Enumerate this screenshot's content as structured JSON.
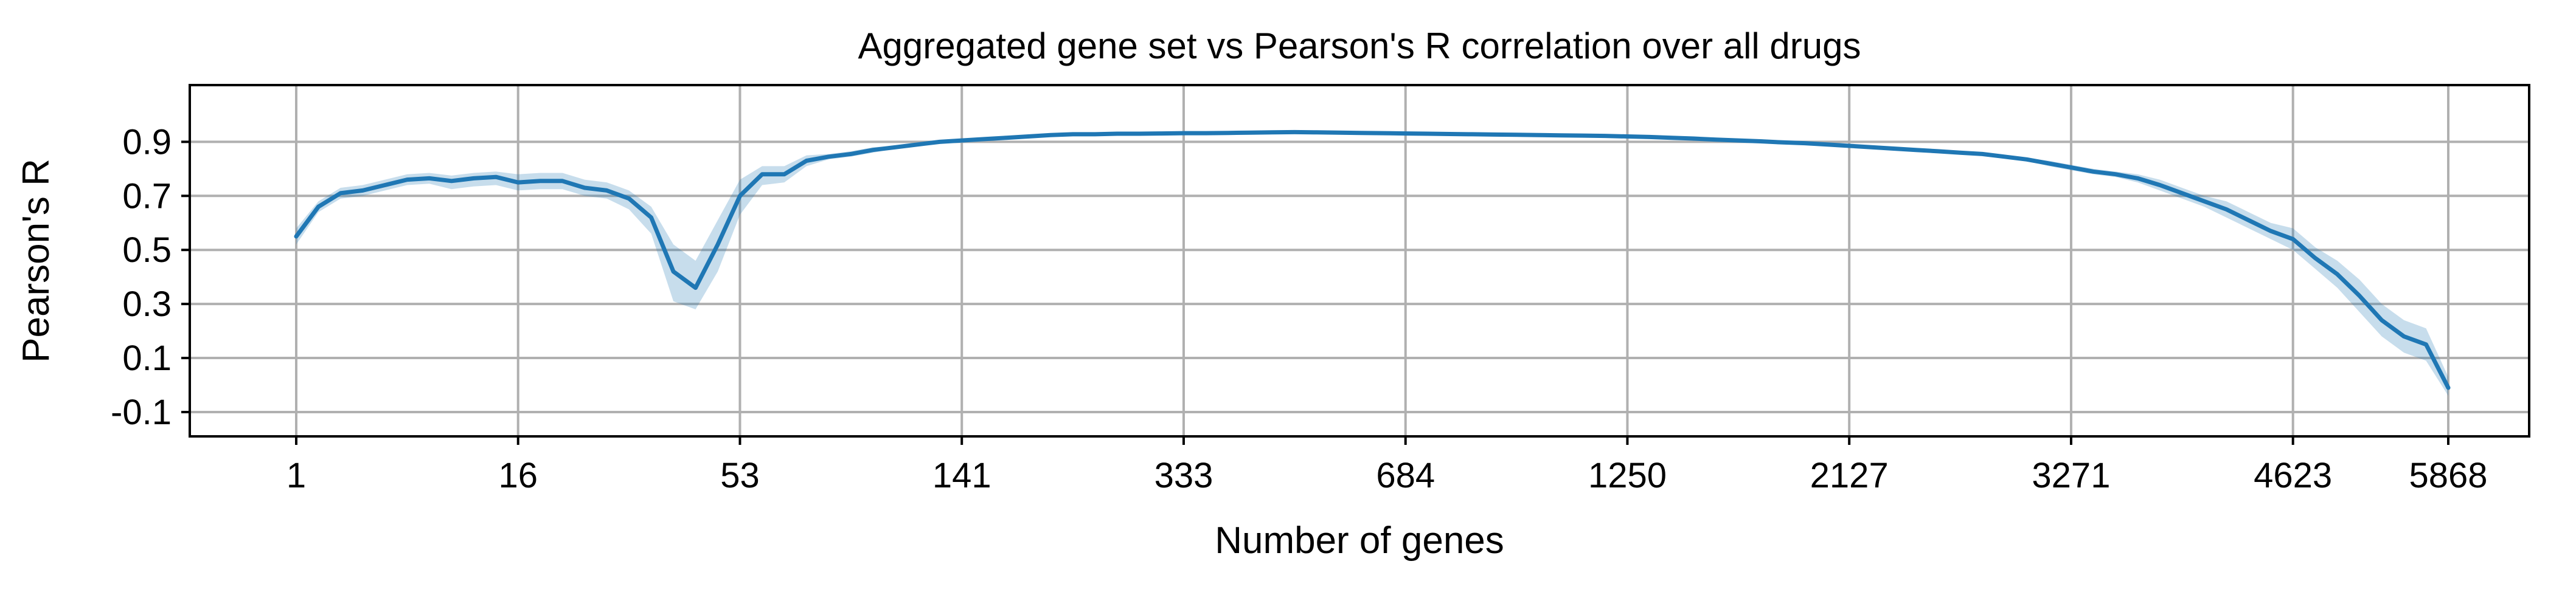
{
  "chart_data": {
    "type": "line",
    "title": "Aggregated gene set vs Pearson's R correlation over all drugs",
    "xlabel": "Number of genes",
    "ylabel": "Pearson's R",
    "x_scale": "categorical (tick every 10th point)",
    "xtick_labels": [
      "1",
      "16",
      "53",
      "141",
      "333",
      "684",
      "1250",
      "2127",
      "3271",
      "4623",
      "5868"
    ],
    "ytick_labels": [
      "-0.1",
      "0.1",
      "0.3",
      "0.5",
      "0.7",
      "0.9"
    ],
    "yticks": [
      -0.1,
      0.1,
      0.3,
      0.5,
      0.7,
      0.9
    ],
    "ylim": [
      -0.19,
      1.11
    ],
    "grid": true,
    "colors": {
      "line": "#1f77b4",
      "band": "#1f77b4",
      "grid": "#b0b0b0"
    },
    "series": [
      {
        "y": [
          0.55,
          0.66,
          0.71,
          0.72,
          0.74,
          0.76,
          0.765,
          0.755,
          0.765,
          0.77,
          0.75,
          0.755,
          0.755,
          0.73,
          0.72,
          0.69,
          0.62,
          0.42,
          0.36,
          0.52,
          0.7,
          0.78,
          0.78,
          0.83,
          0.845,
          0.855,
          0.87,
          0.88,
          0.89,
          0.9,
          0.905,
          0.91,
          0.915,
          0.92,
          0.925,
          0.928,
          0.928,
          0.93,
          0.93,
          0.931,
          0.932,
          0.932,
          0.933,
          0.934,
          0.935,
          0.936,
          0.935,
          0.934,
          0.933,
          0.932,
          0.931,
          0.93,
          0.929,
          0.928,
          0.927,
          0.926,
          0.925,
          0.924,
          0.923,
          0.922,
          0.92,
          0.918,
          0.915,
          0.912,
          0.908,
          0.905,
          0.902,
          0.898,
          0.895,
          0.89,
          0.885,
          0.88,
          0.875,
          0.87,
          0.865,
          0.86,
          0.855,
          0.845,
          0.835,
          0.82,
          0.805,
          0.79,
          0.78,
          0.765,
          0.74,
          0.71,
          0.68,
          0.65,
          0.61,
          0.57,
          0.54,
          0.47,
          0.41,
          0.33,
          0.24,
          0.18,
          0.15,
          -0.01
        ],
        "lower": [
          0.52,
          0.64,
          0.69,
          0.7,
          0.72,
          0.74,
          0.745,
          0.725,
          0.735,
          0.74,
          0.72,
          0.725,
          0.725,
          0.7,
          0.69,
          0.65,
          0.56,
          0.31,
          0.28,
          0.42,
          0.63,
          0.74,
          0.75,
          0.81,
          0.835,
          0.845,
          0.86,
          0.875,
          0.885,
          0.895,
          0.9,
          0.905,
          0.91,
          0.915,
          0.92,
          0.923,
          0.923,
          0.925,
          0.925,
          0.926,
          0.927,
          0.927,
          0.928,
          0.929,
          0.93,
          0.931,
          0.93,
          0.929,
          0.928,
          0.927,
          0.926,
          0.925,
          0.924,
          0.923,
          0.922,
          0.921,
          0.92,
          0.919,
          0.918,
          0.917,
          0.915,
          0.913,
          0.91,
          0.907,
          0.903,
          0.9,
          0.897,
          0.893,
          0.89,
          0.885,
          0.88,
          0.875,
          0.87,
          0.865,
          0.86,
          0.855,
          0.85,
          0.84,
          0.83,
          0.81,
          0.795,
          0.78,
          0.77,
          0.75,
          0.72,
          0.69,
          0.66,
          0.62,
          0.58,
          0.54,
          0.5,
          0.43,
          0.36,
          0.27,
          0.18,
          0.12,
          0.09,
          -0.04
        ],
        "upper": [
          0.58,
          0.68,
          0.73,
          0.74,
          0.76,
          0.78,
          0.785,
          0.775,
          0.785,
          0.79,
          0.78,
          0.785,
          0.785,
          0.76,
          0.75,
          0.72,
          0.66,
          0.52,
          0.46,
          0.61,
          0.76,
          0.81,
          0.81,
          0.85,
          0.855,
          0.865,
          0.88,
          0.885,
          0.895,
          0.905,
          0.91,
          0.915,
          0.92,
          0.925,
          0.93,
          0.933,
          0.933,
          0.935,
          0.935,
          0.936,
          0.937,
          0.937,
          0.938,
          0.939,
          0.94,
          0.941,
          0.94,
          0.939,
          0.938,
          0.937,
          0.936,
          0.935,
          0.934,
          0.933,
          0.932,
          0.931,
          0.93,
          0.929,
          0.928,
          0.927,
          0.925,
          0.923,
          0.92,
          0.917,
          0.913,
          0.91,
          0.907,
          0.903,
          0.9,
          0.895,
          0.89,
          0.885,
          0.88,
          0.875,
          0.87,
          0.865,
          0.86,
          0.85,
          0.84,
          0.83,
          0.815,
          0.8,
          0.79,
          0.78,
          0.76,
          0.73,
          0.7,
          0.68,
          0.64,
          0.6,
          0.58,
          0.51,
          0.46,
          0.39,
          0.3,
          0.24,
          0.21,
          0.03
        ]
      }
    ]
  }
}
